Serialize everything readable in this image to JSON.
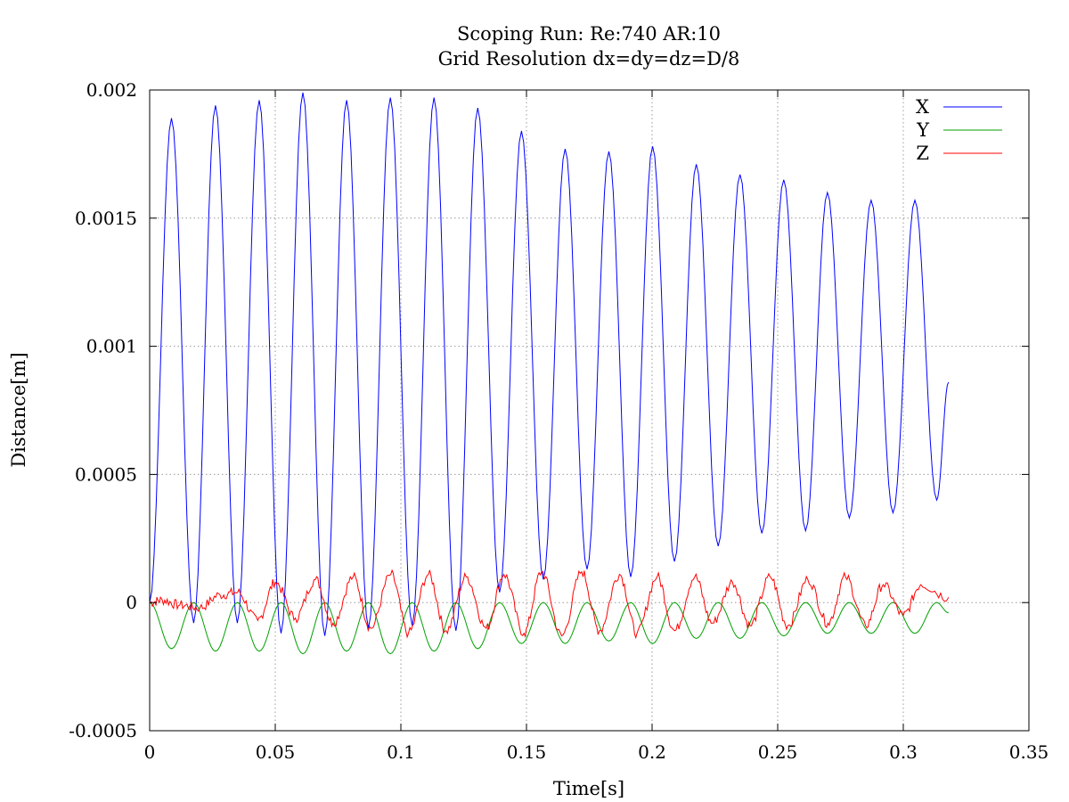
{
  "chart_data": {
    "type": "line",
    "title": "Scoping Run: Re:740  AR:10",
    "subtitle": "Grid Resolution dx=dy=dz=D/8",
    "xlabel": "Time[s]",
    "ylabel": "Distance[m]",
    "xlim": [
      0,
      0.35
    ],
    "ylim": [
      -0.0005,
      0.002
    ],
    "x_ticks": [
      "0",
      "0.05",
      "0.1",
      "0.15",
      "0.2",
      "0.25",
      "0.3",
      "0.35"
    ],
    "x_tick_values": [
      0,
      0.05,
      0.1,
      0.15,
      0.2,
      0.25,
      0.3,
      0.35
    ],
    "y_ticks": [
      "-0.0005",
      "0",
      "0.0005",
      "0.001",
      "0.0015",
      "0.002"
    ],
    "y_tick_values": [
      -0.0005,
      0,
      0.0005,
      0.001,
      0.0015,
      0.002
    ],
    "grid": true,
    "legend_position": "top-right",
    "t_end": 0.318,
    "series": [
      {
        "name": "X",
        "color": "#0000ff",
        "x": [
          0,
          0.0087,
          0.0175,
          0.0262,
          0.0349,
          0.0436,
          0.0523,
          0.061,
          0.0697,
          0.0784,
          0.0871,
          0.0958,
          0.1045,
          0.1132,
          0.1219,
          0.1306,
          0.1393,
          0.148,
          0.1567,
          0.1654,
          0.1741,
          0.1828,
          0.1915,
          0.2002,
          0.2089,
          0.2176,
          0.2263,
          0.235,
          0.2437,
          0.2524,
          0.2611,
          0.2698,
          0.2785,
          0.2872,
          0.2959,
          0.3046,
          0.3133,
          0.318
        ],
        "y": [
          0,
          0.00189,
          -8e-05,
          0.00194,
          -8e-05,
          0.00196,
          -0.00012,
          0.00199,
          -0.00013,
          0.00196,
          -0.0001,
          0.00197,
          -9e-05,
          0.00197,
          -0.00011,
          0.00193,
          4e-05,
          0.00184,
          9e-05,
          0.00177,
          0.00013,
          0.00176,
          0.0001,
          0.00178,
          0.00016,
          0.00171,
          0.00022,
          0.00167,
          0.00027,
          0.00165,
          0.00028,
          0.0016,
          0.00033,
          0.00157,
          0.00035,
          0.00157,
          0.0004,
          0.00086
        ]
      },
      {
        "name": "Y",
        "color": "#00a000",
        "x": [
          0,
          0.0087,
          0.0175,
          0.0262,
          0.0349,
          0.0436,
          0.0523,
          0.061,
          0.0697,
          0.0784,
          0.0871,
          0.0958,
          0.1045,
          0.1132,
          0.1219,
          0.1306,
          0.1393,
          0.148,
          0.1567,
          0.1654,
          0.1741,
          0.1828,
          0.1915,
          0.2002,
          0.2089,
          0.2176,
          0.2263,
          0.235,
          0.2437,
          0.2524,
          0.2611,
          0.2698,
          0.2785,
          0.2872,
          0.2959,
          0.3046,
          0.3133,
          0.318
        ],
        "y": [
          0,
          -0.00018,
          0,
          -0.00019,
          0,
          -0.00019,
          0,
          -0.0002,
          0,
          -0.00019,
          0,
          -0.0002,
          0,
          -0.00019,
          0,
          -0.00018,
          0,
          -0.00016,
          0,
          -0.00016,
          0,
          -0.00015,
          0,
          -0.00016,
          0,
          -0.00014,
          0,
          -0.00014,
          0,
          -0.00013,
          0,
          -0.00012,
          0,
          -0.00012,
          0,
          -0.00012,
          0,
          -4e-05
        ]
      },
      {
        "name": "Z",
        "color": "#ff0000",
        "x": [
          0,
          0.005,
          0.012,
          0.02,
          0.028,
          0.035,
          0.043,
          0.05,
          0.058,
          0.066,
          0.073,
          0.081,
          0.088,
          0.096,
          0.103,
          0.111,
          0.118,
          0.126,
          0.134,
          0.141,
          0.149,
          0.156,
          0.164,
          0.172,
          0.179,
          0.187,
          0.194,
          0.202,
          0.209,
          0.217,
          0.224,
          0.232,
          0.239,
          0.247,
          0.254,
          0.262,
          0.27,
          0.277,
          0.285,
          0.292,
          0.3,
          0.307,
          0.318
        ],
        "y": [
          0,
          1e-05,
          -1e-05,
          -2e-05,
          3e-05,
          4e-05,
          -7e-05,
          8e-05,
          -6e-05,
          9e-05,
          -8e-05,
          0.0001,
          -0.0001,
          0.00011,
          -0.00012,
          0.00011,
          -0.00011,
          0.0001,
          -0.0001,
          0.00011,
          -0.00012,
          0.00012,
          -0.00013,
          0.00012,
          -0.00011,
          0.00011,
          -0.00012,
          0.0001,
          -0.00011,
          0.0001,
          -8e-05,
          8e-05,
          -9e-05,
          0.0001,
          -9e-05,
          9e-05,
          -8e-05,
          0.0001,
          -9e-05,
          7e-05,
          -5e-05,
          7e-05,
          2e-05
        ]
      }
    ]
  }
}
